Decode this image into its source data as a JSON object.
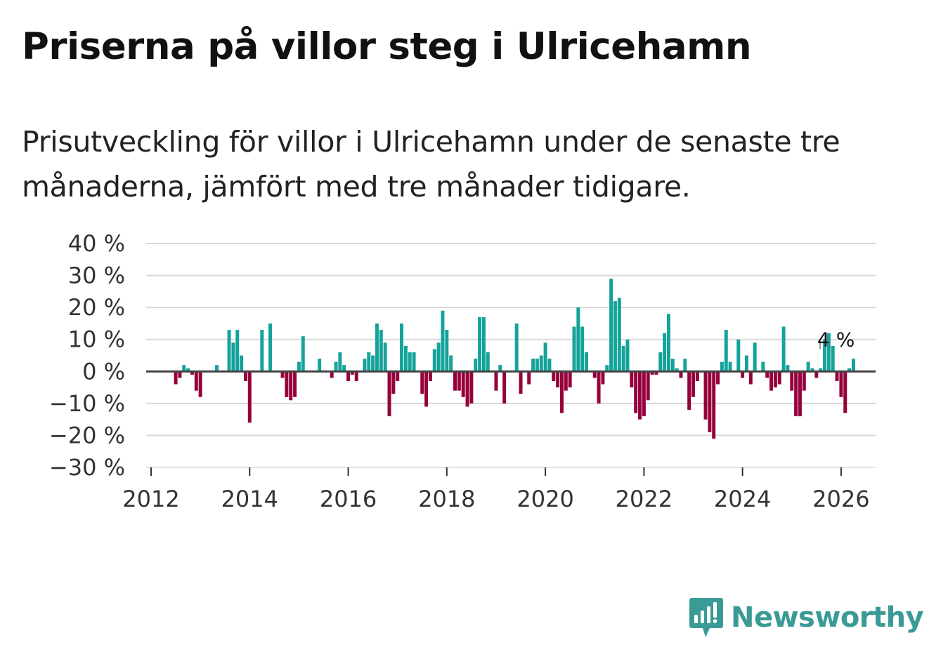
{
  "title": "Priserna på villor steg i Ulricehamn",
  "subtitle": "Prisutveckling för villor i Ulricehamn under de senaste tre månaderna, jämfört med tre månader tidigare.",
  "brand": {
    "name": "Newsworthy",
    "icon": "newsworthy-logo-icon"
  },
  "colors": {
    "positive": "#14a39a",
    "negative": "#95003b",
    "grid": "#d9d9d9",
    "zero": "#444444",
    "brand": "#3a9a96"
  },
  "chart_data": {
    "type": "bar",
    "title": "Priserna på villor steg i Ulricehamn",
    "xlabel": "",
    "ylabel": "",
    "ylim": [
      -30,
      40
    ],
    "y_ticks": [
      {
        "value": 40,
        "label": "40 %"
      },
      {
        "value": 30,
        "label": "30 %"
      },
      {
        "value": 20,
        "label": "20 %"
      },
      {
        "value": 10,
        "label": "10 %"
      },
      {
        "value": 0,
        "label": "0 %"
      },
      {
        "value": -10,
        "label": "−10 %"
      },
      {
        "value": -20,
        "label": "−20 %"
      },
      {
        "value": -30,
        "label": "−30 %"
      }
    ],
    "x_range": [
      2011.9,
      2026.7
    ],
    "x_ticks": [
      {
        "value": 2012,
        "label": "2012"
      },
      {
        "value": 2014,
        "label": "2014"
      },
      {
        "value": 2016,
        "label": "2016"
      },
      {
        "value": 2018,
        "label": "2018"
      },
      {
        "value": 2020,
        "label": "2020"
      },
      {
        "value": 2022,
        "label": "2022"
      },
      {
        "value": 2024,
        "label": "2024"
      },
      {
        "value": 2026,
        "label": "2026"
      }
    ],
    "start": {
      "year": 2012,
      "month": 7
    },
    "grid": true,
    "annotation": {
      "label": "4 %",
      "index": 161
    },
    "series": [
      {
        "name": "Prisutveckling",
        "values": [
          -4,
          -2,
          2,
          1,
          -1,
          -6,
          -8,
          0,
          0,
          0,
          2,
          0,
          0,
          13,
          9,
          13,
          5,
          -3,
          -16,
          0,
          0,
          13,
          0,
          15,
          0,
          0,
          -2,
          -8,
          -9,
          -8,
          3,
          11,
          0,
          0,
          0,
          4,
          0,
          0,
          -2,
          3,
          6,
          2,
          -3,
          -1,
          -3,
          0,
          4,
          6,
          5,
          15,
          13,
          9,
          -14,
          -7,
          -3,
          15,
          8,
          6,
          6,
          0,
          -7,
          -11,
          -3,
          7,
          9,
          19,
          13,
          5,
          -6,
          -6,
          -8,
          -11,
          -10,
          4,
          17,
          17,
          6,
          0,
          -6,
          2,
          -10,
          0,
          0,
          15,
          -7,
          0,
          -4,
          4,
          4,
          5,
          9,
          4,
          -3,
          -5,
          -13,
          -6,
          -5,
          14,
          20,
          14,
          6,
          0,
          -2,
          -10,
          -4,
          2,
          29,
          22,
          23,
          8,
          10,
          -5,
          -13,
          -15,
          -14,
          -9,
          -1,
          -1,
          6,
          12,
          18,
          4,
          1,
          -2,
          4,
          -12,
          -8,
          -3,
          0,
          -15,
          -19,
          -21,
          -4,
          3,
          13,
          3,
          0,
          10,
          -2,
          5,
          -4,
          9,
          0,
          3,
          -2,
          -6,
          -5,
          -4,
          14,
          2,
          -6,
          -14,
          -14,
          -6,
          3,
          1,
          -2,
          1,
          10,
          12,
          8,
          -3,
          -8,
          -13,
          1,
          4
        ]
      }
    ]
  }
}
